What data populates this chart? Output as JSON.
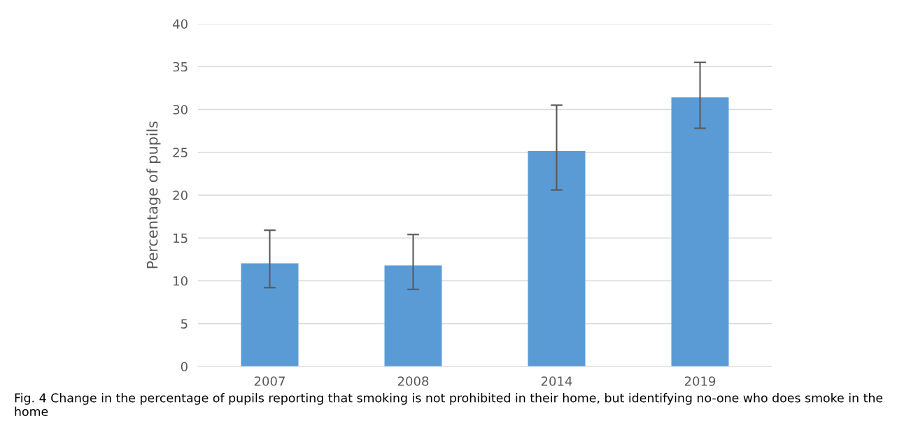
{
  "chart_data": {
    "type": "bar",
    "ylabel": "Percentage of pupils",
    "categories": [
      "2007",
      "2008",
      "2014",
      "2019"
    ],
    "values": [
      12.05,
      11.8,
      25.15,
      31.4
    ],
    "errors": [
      [
        9.2,
        15.9
      ],
      [
        9.0,
        15.4
      ],
      [
        20.6,
        30.5
      ],
      [
        27.8,
        35.5
      ]
    ],
    "color": "#5b9bd5",
    "ylim": [
      0,
      40
    ],
    "yticks": [
      0,
      5,
      10,
      15,
      20,
      25,
      30,
      35,
      40
    ],
    "grid": "y",
    "annotations": [
      "Fig. 4 Change in the percentage of pupils reporting that smoking is not prohibited in their home, but identifying no-one who does smoke in the home"
    ]
  }
}
